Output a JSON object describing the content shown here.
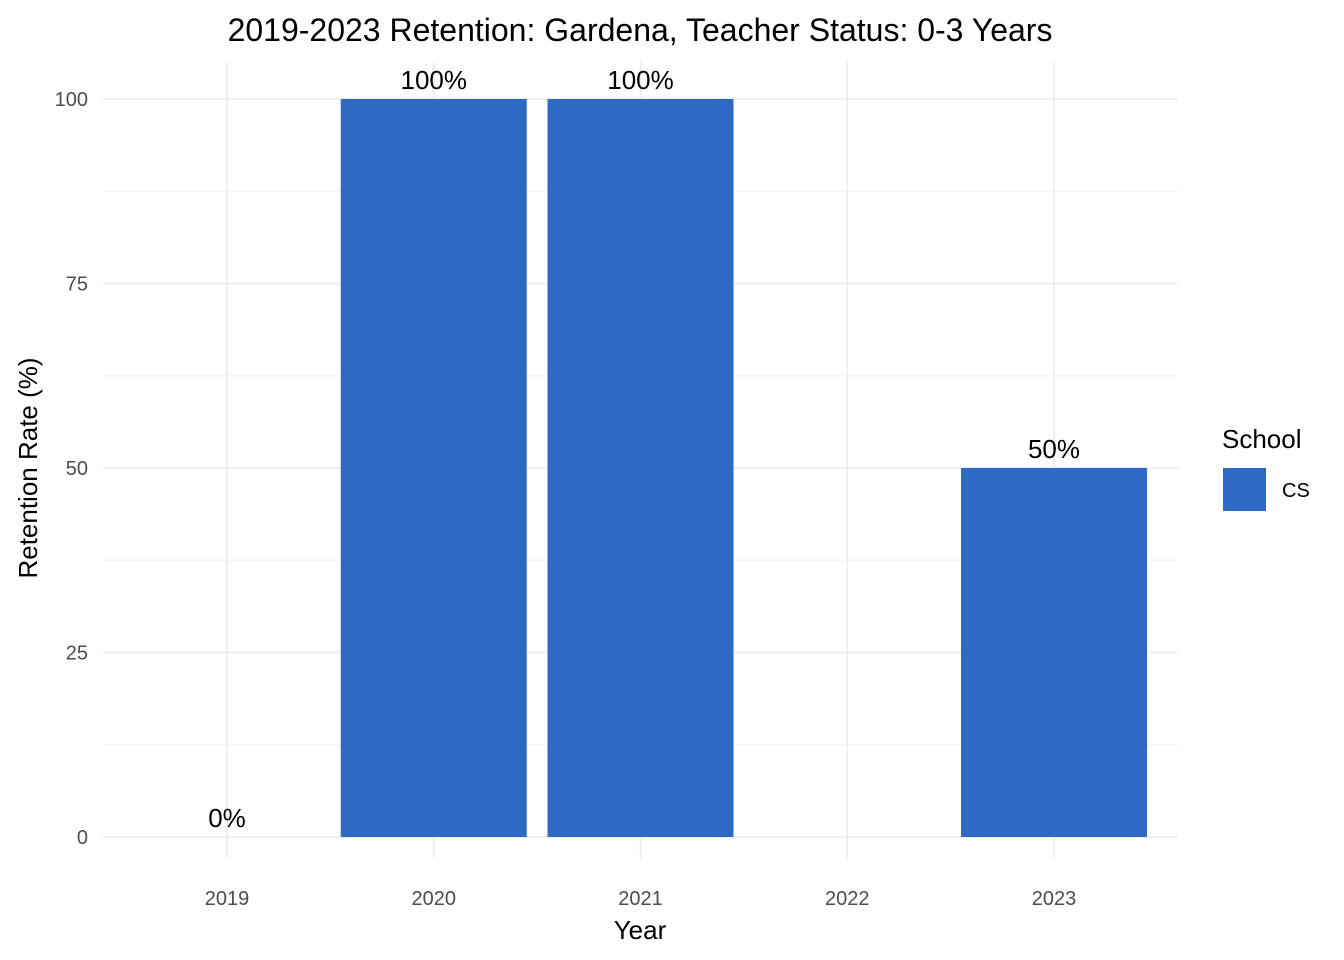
{
  "chart_data": {
    "type": "bar",
    "title": "2019-2023 Retention: Gardena, Teacher Status: 0-3 Years",
    "xlabel": "Year",
    "ylabel": "Retention Rate (%)",
    "categories": [
      "2019",
      "2020",
      "2021",
      "2022",
      "2023"
    ],
    "series": [
      {
        "name": "CS",
        "color": "#2e69c4",
        "values": [
          0,
          100,
          100,
          null,
          50
        ],
        "labels": [
          "0%",
          "100%",
          "100%",
          "",
          "50%"
        ]
      }
    ],
    "ylim": [
      0,
      100
    ],
    "yticks": [
      0,
      25,
      50,
      75,
      100
    ],
    "ytick_labels": [
      "0",
      "25",
      "50",
      "75",
      "100"
    ],
    "grid": true,
    "legend": {
      "title": "School",
      "placement": "right",
      "entries": [
        "CS"
      ]
    }
  }
}
